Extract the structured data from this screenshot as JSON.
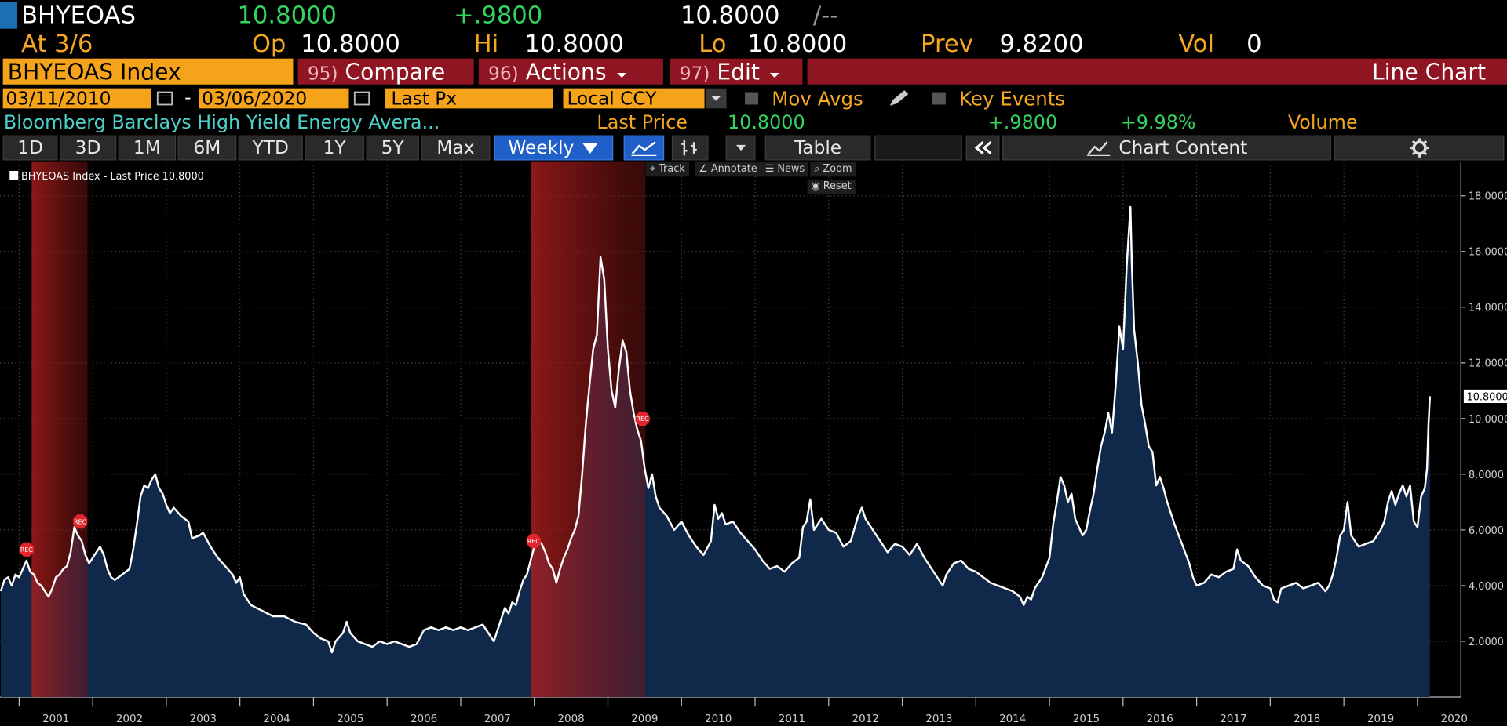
{
  "header": {
    "ticker": "BHYEOAS",
    "last": "10.8000",
    "change": "+.9800",
    "quote": "10.8000",
    "quote_sep": "/--",
    "at": "At 3/6",
    "open_label": "Op",
    "open": "10.8000",
    "high_label": "Hi",
    "high": "10.8000",
    "low_label": "Lo",
    "low": "10.8000",
    "prev_label": "Prev",
    "prev": "9.8200",
    "volume_label": "Vol",
    "volume": "0"
  },
  "toolbar": {
    "security": "BHYEOAS Index",
    "buttons": [
      {
        "number": "95)",
        "label": "Compare"
      },
      {
        "number": "96)",
        "label": "Actions"
      },
      {
        "number": "97)",
        "label": "Edit"
      }
    ],
    "view": "Line Chart"
  },
  "controls": {
    "start_date": "03/11/2010",
    "date_sep": "-",
    "end_date": "03/06/2020",
    "field": "Last Px",
    "currency": "Local CCY",
    "mov_avgs": "Mov Avgs",
    "key_events": "Key Events"
  },
  "summary": {
    "name": "Bloomberg Barclays High Yield Energy Avera...",
    "price_label": "Last Price",
    "price": "10.8000",
    "change": "+.9800",
    "change_pct": "+9.98%",
    "volume_label": "Volume"
  },
  "tabs": {
    "periods": [
      "1D",
      "3D",
      "1M",
      "6M",
      "YTD",
      "1Y",
      "5Y",
      "Max"
    ],
    "frequency": "Weekly",
    "table": "Table",
    "chart_content": "Chart Content"
  },
  "chart_tools": [
    "Track",
    "Annotate",
    "News",
    "Zoom",
    "Reset"
  ],
  "chart": {
    "type": "line",
    "area_color": "#10284a",
    "grid": true,
    "xlim": [
      2000.74,
      2020.59
    ],
    "xticks": [
      2001,
      2002,
      2003,
      2004,
      2005,
      2006,
      2007,
      2008,
      2009,
      2010,
      2011,
      2012,
      2013,
      2014,
      2015,
      2016,
      2017,
      2018,
      2019,
      2020
    ],
    "ylim": [
      0,
      19.24
    ],
    "yticks": [
      {
        "value": 2,
        "label": "2.0000"
      },
      {
        "value": 4,
        "label": "4.0000"
      },
      {
        "value": 6,
        "label": "6.0000"
      },
      {
        "value": 8,
        "label": "8.0000"
      },
      {
        "value": 10,
        "label": "10.0000"
      },
      {
        "value": 12,
        "label": "12.0000"
      },
      {
        "value": 14,
        "label": "14.0000"
      },
      {
        "value": 16,
        "label": "16.0000"
      },
      {
        "value": 18,
        "label": "18.0000"
      }
    ],
    "last_value": {
      "value": 10.8,
      "label": "10.8000"
    },
    "shaded_regions": [
      {
        "start": 2001.17,
        "end": 2001.93
      },
      {
        "start": 2007.96,
        "end": 2009.51
      }
    ],
    "markers": [
      {
        "label": "REC",
        "x": 2001.1,
        "y": 5.3
      },
      {
        "label": "REC",
        "x": 2001.83,
        "y": 6.3
      },
      {
        "label": "REC",
        "x": 2007.99,
        "y": 5.6
      },
      {
        "label": "REC",
        "x": 2009.47,
        "y": 10.0
      }
    ],
    "x": [
      2000.75,
      2000.8,
      2000.85,
      2000.9,
      2000.95,
      2001.0,
      2001.05,
      2001.1,
      2001.15,
      2001.2,
      2001.25,
      2001.3,
      2001.35,
      2001.4,
      2001.45,
      2001.5,
      2001.55,
      2001.6,
      2001.65,
      2001.7,
      2001.75,
      2001.8,
      2001.85,
      2001.9,
      2001.95,
      2002.0,
      2002.05,
      2002.1,
      2002.15,
      2002.2,
      2002.25,
      2002.3,
      2002.4,
      2002.5,
      2002.55,
      2002.6,
      2002.65,
      2002.7,
      2002.75,
      2002.8,
      2002.85,
      2002.9,
      2002.95,
      2003.0,
      2003.05,
      2003.1,
      2003.2,
      2003.3,
      2003.35,
      2003.45,
      2003.5,
      2003.6,
      2003.7,
      2003.8,
      2003.9,
      2003.95,
      2004.0,
      2004.05,
      2004.15,
      2004.3,
      2004.45,
      2004.6,
      2004.75,
      2004.9,
      2005.0,
      2005.1,
      2005.2,
      2005.25,
      2005.3,
      2005.4,
      2005.45,
      2005.5,
      2005.6,
      2005.7,
      2005.8,
      2005.9,
      2006.0,
      2006.1,
      2006.2,
      2006.3,
      2006.4,
      2006.5,
      2006.6,
      2006.7,
      2006.8,
      2006.9,
      2007.0,
      2007.1,
      2007.2,
      2007.3,
      2007.4,
      2007.45,
      2007.5,
      2007.55,
      2007.6,
      2007.65,
      2007.7,
      2007.75,
      2007.8,
      2007.85,
      2007.9,
      2007.95,
      2008.0,
      2008.05,
      2008.1,
      2008.15,
      2008.2,
      2008.25,
      2008.3,
      2008.35,
      2008.4,
      2008.45,
      2008.5,
      2008.55,
      2008.6,
      2008.65,
      2008.7,
      2008.75,
      2008.8,
      2008.85,
      2008.9,
      2008.95,
      2009.0,
      2009.05,
      2009.1,
      2009.15,
      2009.2,
      2009.25,
      2009.3,
      2009.35,
      2009.4,
      2009.45,
      2009.5,
      2009.55,
      2009.6,
      2009.65,
      2009.7,
      2009.8,
      2009.9,
      2010.0,
      2010.1,
      2010.2,
      2010.3,
      2010.4,
      2010.45,
      2010.5,
      2010.55,
      2010.6,
      2010.7,
      2010.8,
      2010.9,
      2011.0,
      2011.1,
      2011.2,
      2011.3,
      2011.4,
      2011.5,
      2011.6,
      2011.65,
      2011.7,
      2011.75,
      2011.8,
      2011.85,
      2011.9,
      2012.0,
      2012.1,
      2012.2,
      2012.3,
      2012.4,
      2012.45,
      2012.5,
      2012.6,
      2012.7,
      2012.8,
      2012.9,
      2013.0,
      2013.1,
      2013.2,
      2013.3,
      2013.4,
      2013.5,
      2013.55,
      2013.6,
      2013.7,
      2013.8,
      2013.9,
      2014.0,
      2014.1,
      2014.2,
      2014.3,
      2014.4,
      2014.5,
      2014.6,
      2014.65,
      2014.7,
      2014.75,
      2014.8,
      2014.9,
      2015.0,
      2015.05,
      2015.1,
      2015.15,
      2015.2,
      2015.25,
      2015.3,
      2015.35,
      2015.4,
      2015.45,
      2015.5,
      2015.55,
      2015.6,
      2015.65,
      2015.7,
      2015.75,
      2015.8,
      2015.85,
      2015.9,
      2015.95,
      2016.0,
      2016.05,
      2016.1,
      2016.12,
      2016.15,
      2016.2,
      2016.25,
      2016.3,
      2016.35,
      2016.4,
      2016.45,
      2016.5,
      2016.55,
      2016.6,
      2016.7,
      2016.8,
      2016.9,
      2016.95,
      2017.0,
      2017.1,
      2017.2,
      2017.3,
      2017.4,
      2017.5,
      2017.55,
      2017.6,
      2017.7,
      2017.8,
      2017.9,
      2018.0,
      2018.05,
      2018.1,
      2018.15,
      2018.25,
      2018.35,
      2018.45,
      2018.55,
      2018.65,
      2018.75,
      2018.8,
      2018.85,
      2018.9,
      2018.95,
      2019.0,
      2019.05,
      2019.1,
      2019.2,
      2019.3,
      2019.4,
      2019.5,
      2019.55,
      2019.6,
      2019.65,
      2019.7,
      2019.75,
      2019.8,
      2019.85,
      2019.9,
      2019.95,
      2020.0,
      2020.05,
      2020.1,
      2020.13,
      2020.15,
      2020.17
    ],
    "series": [
      {
        "name": "BHYEOAS Index - Last Price 10.8000",
        "color": "#ffffff",
        "values": [
          3.8,
          4.2,
          4.3,
          4.0,
          4.4,
          4.3,
          4.6,
          4.9,
          4.5,
          4.4,
          4.1,
          4.0,
          3.8,
          3.6,
          3.9,
          4.3,
          4.4,
          4.6,
          4.7,
          5.2,
          6.1,
          5.8,
          5.6,
          5.1,
          4.8,
          5.0,
          5.2,
          5.4,
          5.1,
          4.6,
          4.3,
          4.2,
          4.4,
          4.6,
          5.3,
          6.2,
          7.2,
          7.6,
          7.5,
          7.8,
          8.0,
          7.5,
          7.3,
          6.9,
          6.6,
          6.8,
          6.5,
          6.3,
          5.7,
          5.8,
          5.9,
          5.4,
          5.0,
          4.7,
          4.4,
          4.1,
          4.3,
          3.7,
          3.3,
          3.1,
          2.9,
          2.9,
          2.7,
          2.6,
          2.3,
          2.1,
          2.0,
          1.6,
          2.0,
          2.3,
          2.7,
          2.3,
          2.0,
          1.9,
          1.8,
          2.0,
          1.9,
          2.0,
          1.9,
          1.8,
          1.9,
          2.4,
          2.5,
          2.4,
          2.5,
          2.4,
          2.5,
          2.4,
          2.5,
          2.6,
          2.2,
          2.0,
          2.4,
          2.8,
          3.2,
          3.0,
          3.4,
          3.3,
          3.8,
          4.2,
          4.4,
          4.9,
          5.4,
          5.6,
          5.5,
          5.2,
          4.8,
          4.6,
          4.1,
          4.6,
          5.0,
          5.3,
          5.7,
          6.0,
          6.5,
          8.0,
          9.8,
          11.2,
          12.5,
          13.0,
          15.8,
          15.0,
          12.5,
          11.0,
          10.4,
          11.8,
          12.8,
          12.4,
          11.0,
          10.2,
          9.6,
          9.2,
          8.2,
          7.5,
          8.0,
          7.2,
          6.8,
          6.5,
          6.0,
          6.3,
          5.8,
          5.4,
          5.1,
          5.6,
          6.9,
          6.4,
          6.6,
          6.2,
          6.3,
          5.9,
          5.6,
          5.3,
          4.9,
          4.6,
          4.7,
          4.5,
          4.8,
          5.0,
          6.1,
          6.3,
          7.1,
          6.0,
          6.2,
          6.4,
          6.0,
          5.9,
          5.4,
          5.6,
          6.5,
          6.8,
          6.4,
          6.0,
          5.6,
          5.2,
          5.5,
          5.4,
          5.1,
          5.5,
          5.0,
          4.6,
          4.2,
          4.0,
          4.4,
          4.8,
          4.9,
          4.6,
          4.5,
          4.3,
          4.1,
          4.0,
          3.9,
          3.8,
          3.6,
          3.3,
          3.6,
          3.5,
          3.9,
          4.3,
          5.0,
          6.2,
          7.0,
          7.9,
          7.6,
          7.0,
          7.3,
          6.4,
          6.1,
          5.8,
          6.0,
          6.7,
          7.3,
          8.2,
          9.0,
          9.5,
          10.2,
          9.5,
          11.2,
          13.3,
          12.5,
          15.5,
          17.6,
          15.5,
          13.2,
          12.0,
          10.5,
          9.8,
          9.0,
          8.8,
          7.6,
          7.9,
          7.5,
          7.0,
          6.2,
          5.5,
          4.8,
          4.3,
          4.0,
          4.1,
          4.4,
          4.3,
          4.5,
          4.6,
          5.3,
          4.9,
          4.7,
          4.3,
          4.0,
          3.9,
          3.5,
          3.4,
          3.9,
          4.0,
          4.1,
          3.9,
          4.0,
          4.1,
          3.8,
          4.0,
          4.4,
          5.0,
          5.8,
          6.0,
          7.0,
          5.8,
          5.4,
          5.5,
          5.6,
          6.0,
          6.3,
          7.0,
          7.4,
          6.9,
          7.3,
          7.6,
          7.2,
          7.6,
          6.3,
          6.1,
          7.2,
          7.5,
          8.2,
          9.8,
          10.8
        ]
      }
    ]
  }
}
